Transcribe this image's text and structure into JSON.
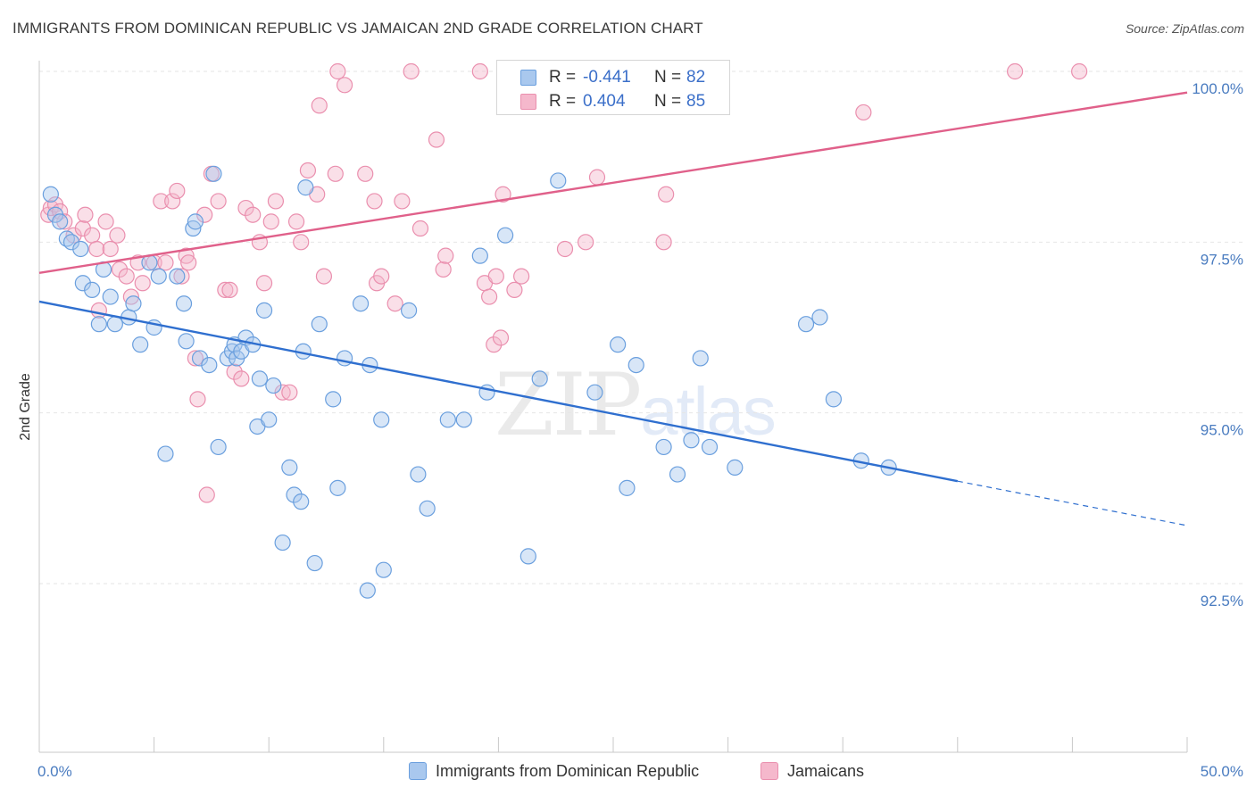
{
  "header": {
    "title": "IMMIGRANTS FROM DOMINICAN REPUBLIC VS JAMAICAN 2ND GRADE CORRELATION CHART",
    "source": "Source: ZipAtlas.com"
  },
  "watermark": {
    "zip": "ZIP",
    "atlas": "atlas"
  },
  "legend_top": {
    "rows": [
      {
        "r_label": "R = ",
        "r_value": "-0.441",
        "n_label": "N = ",
        "n_value": "82"
      },
      {
        "r_label": "R = ",
        "r_value": "0.404",
        "n_label": "N = ",
        "n_value": "85"
      }
    ]
  },
  "bottom_legend": {
    "items": [
      {
        "label": "Immigrants from Dominican Republic"
      },
      {
        "label": "Jamaicans"
      }
    ]
  },
  "colors": {
    "blue_fill": "#a9c8ee",
    "blue_stroke": "#6a9fde",
    "blue_line": "#2f6fcf",
    "pink_fill": "#f5b8cc",
    "pink_stroke": "#ea8fae",
    "pink_line": "#e0608a",
    "tick_text": "#4a7cc0",
    "grid": "#e6e6e6"
  },
  "chart_data": {
    "type": "scatter",
    "title": "IMMIGRANTS FROM DOMINICAN REPUBLIC VS JAMAICAN 2ND GRADE CORRELATION CHART",
    "xlabel": "",
    "ylabel": "2nd Grade",
    "xlim": [
      0,
      50
    ],
    "ylim": [
      90.3,
      100.5
    ],
    "x_tick_labels": [
      "0.0%",
      "50.0%"
    ],
    "y_ticks": [
      92.5,
      95.0,
      97.5,
      100.0
    ],
    "y_tick_labels": [
      "92.5%",
      "95.0%",
      "97.5%",
      "100.0%"
    ],
    "grid": "horizontal dashed",
    "legend_placement": "top-center",
    "series": [
      {
        "name": "Immigrants from Dominican Republic",
        "R": -0.441,
        "N": 82,
        "trend": {
          "x0": 0,
          "y0": 96.63,
          "x1": 40,
          "y1": 94.0,
          "dashed_to_x": 50,
          "dashed_to_y": 93.35
        },
        "points": [
          [
            0.5,
            98.2
          ],
          [
            0.7,
            97.9
          ],
          [
            0.9,
            97.8
          ],
          [
            1.2,
            97.55
          ],
          [
            1.4,
            97.5
          ],
          [
            1.8,
            97.4
          ],
          [
            1.9,
            96.9
          ],
          [
            2.3,
            96.8
          ],
          [
            2.6,
            96.3
          ],
          [
            2.8,
            97.1
          ],
          [
            3.1,
            96.7
          ],
          [
            3.3,
            96.3
          ],
          [
            3.9,
            96.4
          ],
          [
            4.1,
            96.6
          ],
          [
            4.4,
            96.0
          ],
          [
            4.8,
            97.2
          ],
          [
            5.0,
            96.25
          ],
          [
            5.2,
            97.0
          ],
          [
            5.5,
            94.4
          ],
          [
            6.0,
            97.0
          ],
          [
            6.3,
            96.6
          ],
          [
            6.4,
            96.05
          ],
          [
            6.7,
            97.7
          ],
          [
            6.8,
            97.8
          ],
          [
            7.0,
            95.8
          ],
          [
            7.4,
            95.7
          ],
          [
            7.6,
            98.5
          ],
          [
            7.8,
            94.5
          ],
          [
            8.2,
            95.8
          ],
          [
            8.4,
            95.9
          ],
          [
            8.5,
            96.0
          ],
          [
            8.6,
            95.8
          ],
          [
            8.8,
            95.9
          ],
          [
            9.0,
            96.1
          ],
          [
            9.3,
            96.0
          ],
          [
            9.5,
            94.8
          ],
          [
            9.6,
            95.5
          ],
          [
            9.8,
            96.5
          ],
          [
            10.0,
            94.9
          ],
          [
            10.2,
            95.4
          ],
          [
            10.6,
            93.1
          ],
          [
            10.9,
            94.2
          ],
          [
            11.1,
            93.8
          ],
          [
            11.4,
            93.7
          ],
          [
            11.5,
            95.9
          ],
          [
            11.6,
            98.3
          ],
          [
            12.0,
            92.8
          ],
          [
            12.2,
            96.3
          ],
          [
            12.8,
            95.2
          ],
          [
            13.0,
            93.9
          ],
          [
            13.3,
            95.8
          ],
          [
            14.0,
            96.6
          ],
          [
            14.3,
            92.4
          ],
          [
            14.4,
            95.7
          ],
          [
            14.9,
            94.9
          ],
          [
            15.0,
            92.7
          ],
          [
            16.1,
            96.5
          ],
          [
            16.5,
            94.1
          ],
          [
            16.9,
            93.6
          ],
          [
            17.8,
            94.9
          ],
          [
            18.5,
            94.9
          ],
          [
            19.2,
            97.3
          ],
          [
            19.5,
            95.3
          ],
          [
            20.3,
            97.6
          ],
          [
            21.3,
            92.9
          ],
          [
            21.8,
            95.5
          ],
          [
            22.6,
            98.4
          ],
          [
            24.2,
            95.3
          ],
          [
            25.2,
            96.0
          ],
          [
            25.6,
            93.9
          ],
          [
            26.0,
            95.7
          ],
          [
            27.2,
            94.5
          ],
          [
            27.8,
            94.1
          ],
          [
            28.4,
            94.6
          ],
          [
            28.8,
            95.8
          ],
          [
            29.2,
            94.5
          ],
          [
            30.3,
            94.2
          ],
          [
            33.4,
            96.3
          ],
          [
            34.0,
            96.4
          ],
          [
            34.6,
            95.2
          ],
          [
            35.8,
            94.3
          ],
          [
            37.0,
            94.2
          ]
        ]
      },
      {
        "name": "Jamaicans",
        "R": 0.404,
        "N": 85,
        "trend": {
          "x0": 0,
          "y0": 97.05,
          "x1": 50,
          "y1": 99.69
        },
        "points": [
          [
            0.4,
            97.9
          ],
          [
            0.5,
            98.0
          ],
          [
            0.7,
            98.05
          ],
          [
            0.9,
            97.95
          ],
          [
            1.1,
            97.8
          ],
          [
            1.5,
            97.6
          ],
          [
            1.9,
            97.7
          ],
          [
            2.0,
            97.9
          ],
          [
            2.3,
            97.6
          ],
          [
            2.5,
            97.4
          ],
          [
            2.6,
            96.5
          ],
          [
            2.9,
            97.8
          ],
          [
            3.1,
            97.4
          ],
          [
            3.4,
            97.6
          ],
          [
            3.5,
            97.1
          ],
          [
            3.8,
            97.0
          ],
          [
            4.0,
            96.7
          ],
          [
            4.3,
            97.2
          ],
          [
            4.5,
            96.9
          ],
          [
            5.0,
            97.2
          ],
          [
            5.3,
            98.1
          ],
          [
            5.5,
            97.2
          ],
          [
            5.8,
            98.1
          ],
          [
            6.0,
            98.25
          ],
          [
            6.2,
            97.0
          ],
          [
            6.4,
            97.3
          ],
          [
            6.5,
            97.2
          ],
          [
            6.8,
            95.8
          ],
          [
            6.9,
            95.2
          ],
          [
            7.2,
            97.9
          ],
          [
            7.3,
            93.8
          ],
          [
            7.5,
            98.5
          ],
          [
            7.8,
            98.1
          ],
          [
            8.1,
            96.8
          ],
          [
            8.3,
            96.8
          ],
          [
            8.5,
            95.6
          ],
          [
            8.8,
            95.5
          ],
          [
            9.0,
            98.0
          ],
          [
            9.3,
            97.9
          ],
          [
            9.6,
            97.5
          ],
          [
            9.8,
            96.9
          ],
          [
            10.1,
            97.8
          ],
          [
            10.3,
            98.1
          ],
          [
            10.6,
            95.3
          ],
          [
            10.9,
            95.3
          ],
          [
            11.2,
            97.8
          ],
          [
            11.4,
            97.5
          ],
          [
            11.7,
            98.55
          ],
          [
            12.1,
            98.2
          ],
          [
            12.2,
            99.5
          ],
          [
            12.4,
            97.0
          ],
          [
            12.9,
            98.5
          ],
          [
            13.0,
            100.0
          ],
          [
            13.3,
            99.8
          ],
          [
            14.2,
            98.5
          ],
          [
            14.6,
            98.1
          ],
          [
            14.7,
            96.9
          ],
          [
            14.9,
            97.0
          ],
          [
            15.8,
            98.1
          ],
          [
            16.2,
            100.0
          ],
          [
            16.6,
            97.7
          ],
          [
            17.3,
            99.0
          ],
          [
            17.6,
            97.1
          ],
          [
            17.7,
            97.3
          ],
          [
            19.2,
            100.0
          ],
          [
            19.4,
            96.9
          ],
          [
            19.6,
            96.7
          ],
          [
            19.8,
            96.0
          ],
          [
            19.9,
            97.0
          ],
          [
            20.1,
            96.1
          ],
          [
            20.2,
            98.2
          ],
          [
            20.7,
            96.8
          ],
          [
            22.9,
            97.4
          ],
          [
            23.8,
            97.5
          ],
          [
            24.3,
            98.45
          ],
          [
            27.0,
            100.0
          ],
          [
            27.2,
            97.5
          ],
          [
            27.3,
            98.2
          ],
          [
            27.8,
            100.0
          ],
          [
            35.9,
            99.4
          ],
          [
            42.5,
            100.0
          ],
          [
            45.3,
            100.0
          ],
          [
            29.0,
            99.9
          ],
          [
            15.5,
            96.6
          ],
          [
            21.0,
            97.0
          ]
        ]
      }
    ]
  }
}
